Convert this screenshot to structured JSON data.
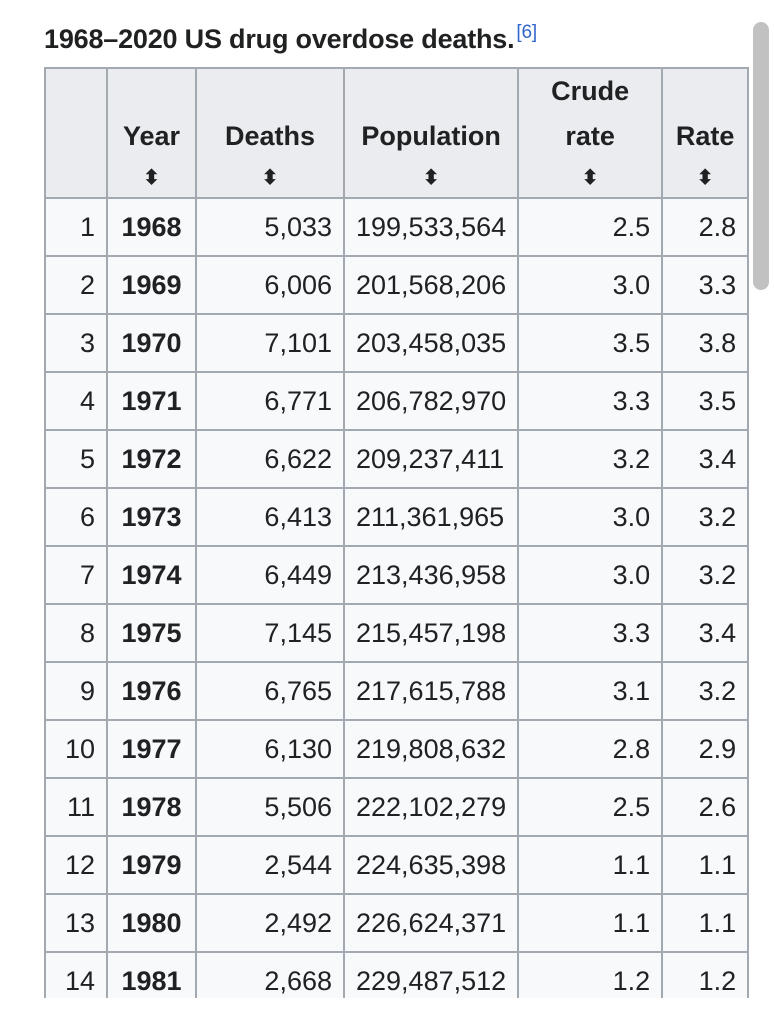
{
  "caption": {
    "title": "1968–2020 US drug overdose deaths.",
    "ref": "[6]"
  },
  "table": {
    "columns": [
      {
        "key": "idx",
        "label": ""
      },
      {
        "key": "year",
        "label": "Year"
      },
      {
        "key": "deaths",
        "label": "Deaths"
      },
      {
        "key": "population",
        "label": "Population"
      },
      {
        "key": "crude_rate",
        "label": "Crude rate"
      },
      {
        "key": "rate",
        "label": "Rate"
      }
    ],
    "rows": [
      {
        "idx": "1",
        "year": "1968",
        "deaths": "5,033",
        "population": "199,533,564",
        "crude_rate": "2.5",
        "rate": "2.8"
      },
      {
        "idx": "2",
        "year": "1969",
        "deaths": "6,006",
        "population": "201,568,206",
        "crude_rate": "3.0",
        "rate": "3.3"
      },
      {
        "idx": "3",
        "year": "1970",
        "deaths": "7,101",
        "population": "203,458,035",
        "crude_rate": "3.5",
        "rate": "3.8"
      },
      {
        "idx": "4",
        "year": "1971",
        "deaths": "6,771",
        "population": "206,782,970",
        "crude_rate": "3.3",
        "rate": "3.5"
      },
      {
        "idx": "5",
        "year": "1972",
        "deaths": "6,622",
        "population": "209,237,411",
        "crude_rate": "3.2",
        "rate": "3.4"
      },
      {
        "idx": "6",
        "year": "1973",
        "deaths": "6,413",
        "population": "211,361,965",
        "crude_rate": "3.0",
        "rate": "3.2"
      },
      {
        "idx": "7",
        "year": "1974",
        "deaths": "6,449",
        "population": "213,436,958",
        "crude_rate": "3.0",
        "rate": "3.2"
      },
      {
        "idx": "8",
        "year": "1975",
        "deaths": "7,145",
        "population": "215,457,198",
        "crude_rate": "3.3",
        "rate": "3.4"
      },
      {
        "idx": "9",
        "year": "1976",
        "deaths": "6,765",
        "population": "217,615,788",
        "crude_rate": "3.1",
        "rate": "3.2"
      },
      {
        "idx": "10",
        "year": "1977",
        "deaths": "6,130",
        "population": "219,808,632",
        "crude_rate": "2.8",
        "rate": "2.9"
      },
      {
        "idx": "11",
        "year": "1978",
        "deaths": "5,506",
        "population": "222,102,279",
        "crude_rate": "2.5",
        "rate": "2.6"
      },
      {
        "idx": "12",
        "year": "1979",
        "deaths": "2,544",
        "population": "224,635,398",
        "crude_rate": "1.1",
        "rate": "1.1"
      },
      {
        "idx": "13",
        "year": "1980",
        "deaths": "2,492",
        "population": "226,624,371",
        "crude_rate": "1.1",
        "rate": "1.1"
      },
      {
        "idx": "14",
        "year": "1981",
        "deaths": "2,668",
        "population": "229,487,512",
        "crude_rate": "1.2",
        "rate": "1.2"
      }
    ]
  },
  "icons": {
    "sort": "sort-updown-icon",
    "sort_glyph": "⬍"
  },
  "colors": {
    "link": "#3366cc",
    "header_bg": "#eaecf0",
    "cell_bg": "#f8f9fa",
    "border": "#a2a9b1"
  }
}
